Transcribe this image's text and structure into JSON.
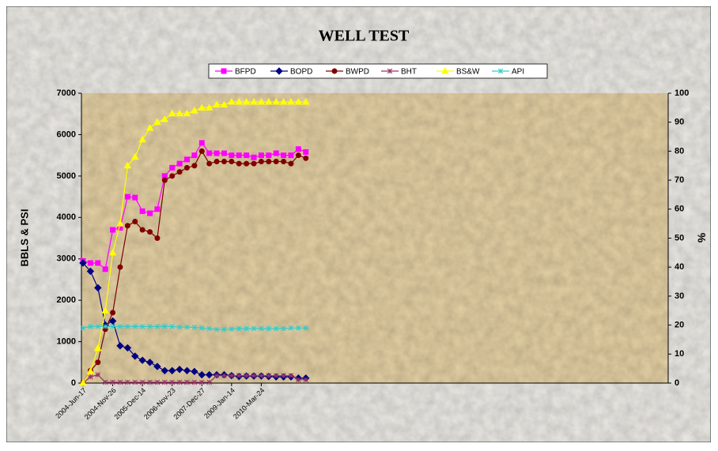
{
  "chart_data": {
    "type": "line",
    "title": "WELL TEST",
    "ylabel": "BBLS & PSI",
    "y2label": "%",
    "categories": [
      "2004-Jun-17",
      null,
      null,
      null,
      "2004-Nov-26",
      null,
      null,
      null,
      "2005-Dec-14",
      null,
      null,
      null,
      "2006-Nov-23",
      null,
      null,
      null,
      "2007-Dec-27",
      null,
      null,
      null,
      "2009-Jan-14",
      null,
      null,
      null,
      "2010-Mar-24",
      null,
      null,
      null,
      null,
      null,
      null,
      null,
      null,
      null,
      null,
      null,
      null,
      null,
      null,
      null,
      null,
      null,
      null,
      null,
      null,
      null,
      null,
      null,
      null,
      null,
      null,
      null,
      null,
      null,
      null,
      null,
      null,
      null,
      null,
      null,
      null,
      null,
      null,
      null,
      null,
      null,
      null,
      null,
      null,
      null,
      null,
      null,
      null,
      null,
      null,
      null,
      null,
      null,
      null,
      null
    ],
    "series": [
      {
        "name": "BFPD",
        "color": "#ff00ff",
        "marker": "square",
        "values": [
          2950,
          2900,
          2900,
          2750,
          3700,
          3750,
          4500,
          4480,
          4150,
          4100,
          4200,
          5000,
          5200,
          5300,
          5400,
          5500,
          5800,
          5550,
          5550,
          5550,
          5500,
          5500,
          5500,
          5450,
          5500,
          5500,
          5550,
          5500,
          5500,
          5650,
          5580,
          null,
          null,
          null,
          null,
          null,
          null,
          null,
          null,
          null,
          null,
          null,
          null,
          null,
          null,
          null,
          null,
          null,
          null,
          null,
          null,
          null,
          null,
          null,
          null,
          null,
          null,
          null,
          null,
          null,
          null,
          null,
          null,
          null,
          null,
          null,
          null,
          null,
          null,
          null,
          null,
          null,
          null,
          null,
          null,
          null,
          null,
          null,
          null,
          null
        ]
      },
      {
        "name": "BOPD",
        "color": "#000080",
        "marker": "diamond",
        "values": [
          2900,
          2700,
          2300,
          1400,
          1500,
          900,
          850,
          650,
          550,
          500,
          400,
          300,
          300,
          330,
          300,
          280,
          200,
          200,
          200,
          200,
          180,
          160,
          170,
          170,
          170,
          160,
          150,
          150,
          150,
          120,
          120,
          null,
          null,
          null,
          null,
          null,
          null,
          null,
          null,
          null,
          null,
          null,
          null,
          null,
          null,
          null,
          null,
          null,
          null,
          null,
          null,
          null,
          null,
          null,
          null,
          null,
          null,
          null,
          null,
          null,
          null,
          null,
          null,
          null,
          null,
          null,
          null,
          null,
          null,
          null,
          null,
          null,
          null,
          null,
          null,
          null,
          null,
          null,
          null,
          null
        ]
      },
      {
        "name": "BWPD",
        "color": "#800000",
        "marker": "circle",
        "values": [
          0,
          300,
          500,
          1300,
          1700,
          2800,
          3800,
          3900,
          3700,
          3650,
          3500,
          4900,
          5000,
          5100,
          5200,
          5250,
          5600,
          5300,
          5350,
          5350,
          5350,
          5300,
          5300,
          5300,
          5350,
          5350,
          5350,
          5350,
          5300,
          5500,
          5430,
          null,
          null,
          null,
          null,
          null,
          null,
          null,
          null,
          null,
          null,
          null,
          null,
          null,
          null,
          null,
          null,
          null,
          null,
          null,
          null,
          null,
          null,
          null,
          null,
          null,
          null,
          null,
          null,
          null,
          null,
          null,
          null,
          null,
          null,
          null,
          null,
          null,
          null,
          null,
          null,
          null,
          null,
          null,
          null,
          null,
          null,
          null,
          null,
          null
        ]
      },
      {
        "name": "BHT",
        "color": "#993366",
        "marker": "star",
        "values": [
          0,
          150,
          200,
          20,
          20,
          20,
          20,
          20,
          20,
          20,
          20,
          20,
          20,
          20,
          20,
          20,
          20,
          20,
          180,
          180,
          180,
          180,
          180,
          180,
          180,
          180,
          180,
          180,
          180,
          80,
          80,
          null,
          null,
          null,
          null,
          null,
          null,
          null,
          null,
          null,
          null,
          null,
          null,
          null,
          null,
          null,
          null,
          null,
          null,
          null,
          null,
          null,
          null,
          null,
          null,
          null,
          null,
          null,
          null,
          null,
          null,
          null,
          null,
          null,
          null,
          null,
          null,
          null,
          null,
          null,
          null,
          null,
          null,
          null,
          null,
          null,
          null,
          null,
          null,
          null
        ]
      },
      {
        "name": "BS&W",
        "color": "#ffff00",
        "marker": "triangle",
        "axis": "y2",
        "values": [
          0,
          4,
          12,
          25,
          45,
          55,
          75,
          78,
          84,
          88,
          90,
          91,
          93,
          93,
          93,
          94,
          95,
          95,
          96,
          96,
          97,
          97,
          97,
          97,
          97,
          97,
          97,
          97,
          97,
          97,
          97,
          null,
          null,
          null,
          null,
          null,
          null,
          null,
          null,
          null,
          null,
          null,
          null,
          null,
          null,
          null,
          null,
          null,
          null,
          null,
          null,
          null,
          null,
          null,
          null,
          null,
          null,
          null,
          null,
          null,
          null,
          null,
          null,
          null,
          null,
          null,
          null,
          null,
          null,
          null,
          null,
          null,
          null,
          null,
          null,
          null,
          null,
          null,
          null,
          null
        ]
      },
      {
        "name": "API",
        "color": "#33cccc",
        "marker": "star",
        "axis": "y2",
        "values": [
          19,
          19.5,
          19.5,
          19.5,
          19.5,
          19.5,
          19.5,
          19.5,
          19.5,
          19.5,
          19.5,
          19.5,
          19.5,
          19.3,
          19.3,
          19.2,
          19,
          18.8,
          18.5,
          18.5,
          18.6,
          18.8,
          18.8,
          18.8,
          18.8,
          18.8,
          18.8,
          18.8,
          19,
          19,
          19,
          null,
          null,
          null,
          null,
          null,
          null,
          null,
          null,
          null,
          null,
          null,
          null,
          null,
          null,
          null,
          null,
          null,
          null,
          null,
          null,
          null,
          null,
          null,
          null,
          null,
          null,
          null,
          null,
          null,
          null,
          null,
          null,
          null,
          null,
          null,
          null,
          null,
          null,
          null,
          null,
          null,
          null,
          null,
          null,
          null,
          null,
          null,
          null,
          null
        ]
      }
    ],
    "ylim": [
      0,
      7000
    ],
    "yticks": [
      0,
      1000,
      2000,
      3000,
      4000,
      5000,
      6000,
      7000
    ],
    "y2lim": [
      0,
      100
    ],
    "y2ticks": [
      0,
      10,
      20,
      30,
      40,
      50,
      60,
      70,
      80,
      90,
      100
    ],
    "legend": "top"
  }
}
